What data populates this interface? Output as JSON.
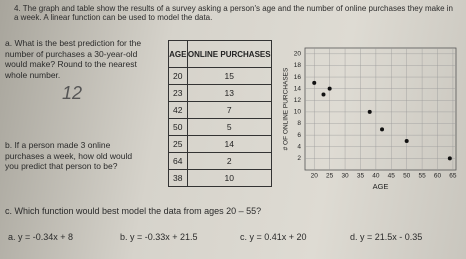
{
  "header": {
    "text": "4. The graph and table show the results of a survey asking a person's age and the number of online purchases they make in a week. A linear function can be used to model the data."
  },
  "question_a": {
    "text": "a. What is the best prediction for the number of purchases a 30-year-old would make? Round to the nearest whole number.",
    "answer": "12"
  },
  "question_b": {
    "text": "b. If a person made 3 online purchases a week, how old would you predict that person to be?"
  },
  "table": {
    "headers": [
      "AGE",
      "ONLINE PURCHASES"
    ],
    "rows": [
      [
        20,
        15
      ],
      [
        23,
        13
      ],
      [
        42,
        7
      ],
      [
        50,
        5
      ],
      [
        25,
        14
      ],
      [
        64,
        2
      ],
      [
        38,
        10
      ]
    ]
  },
  "graph": {
    "type": "scatter",
    "x_label": "AGE",
    "y_label": "# OF ONLINE PURCHASES",
    "xlim": [
      17,
      66
    ],
    "ylim": [
      0,
      21
    ],
    "xticks": [
      20,
      25,
      30,
      35,
      40,
      45,
      50,
      55,
      60,
      65
    ],
    "yticks": [
      2,
      4,
      6,
      8,
      10,
      12,
      14,
      16,
      18,
      20
    ]
  },
  "question_c": {
    "text": "c. Which function would best model the data from ages 20 – 55?",
    "options": [
      "a. y = -0.34x + 8",
      "b. y = -0.33x + 21.5",
      "c. y = 0.41x + 20",
      "d. y = 21.5x - 0.35"
    ]
  }
}
